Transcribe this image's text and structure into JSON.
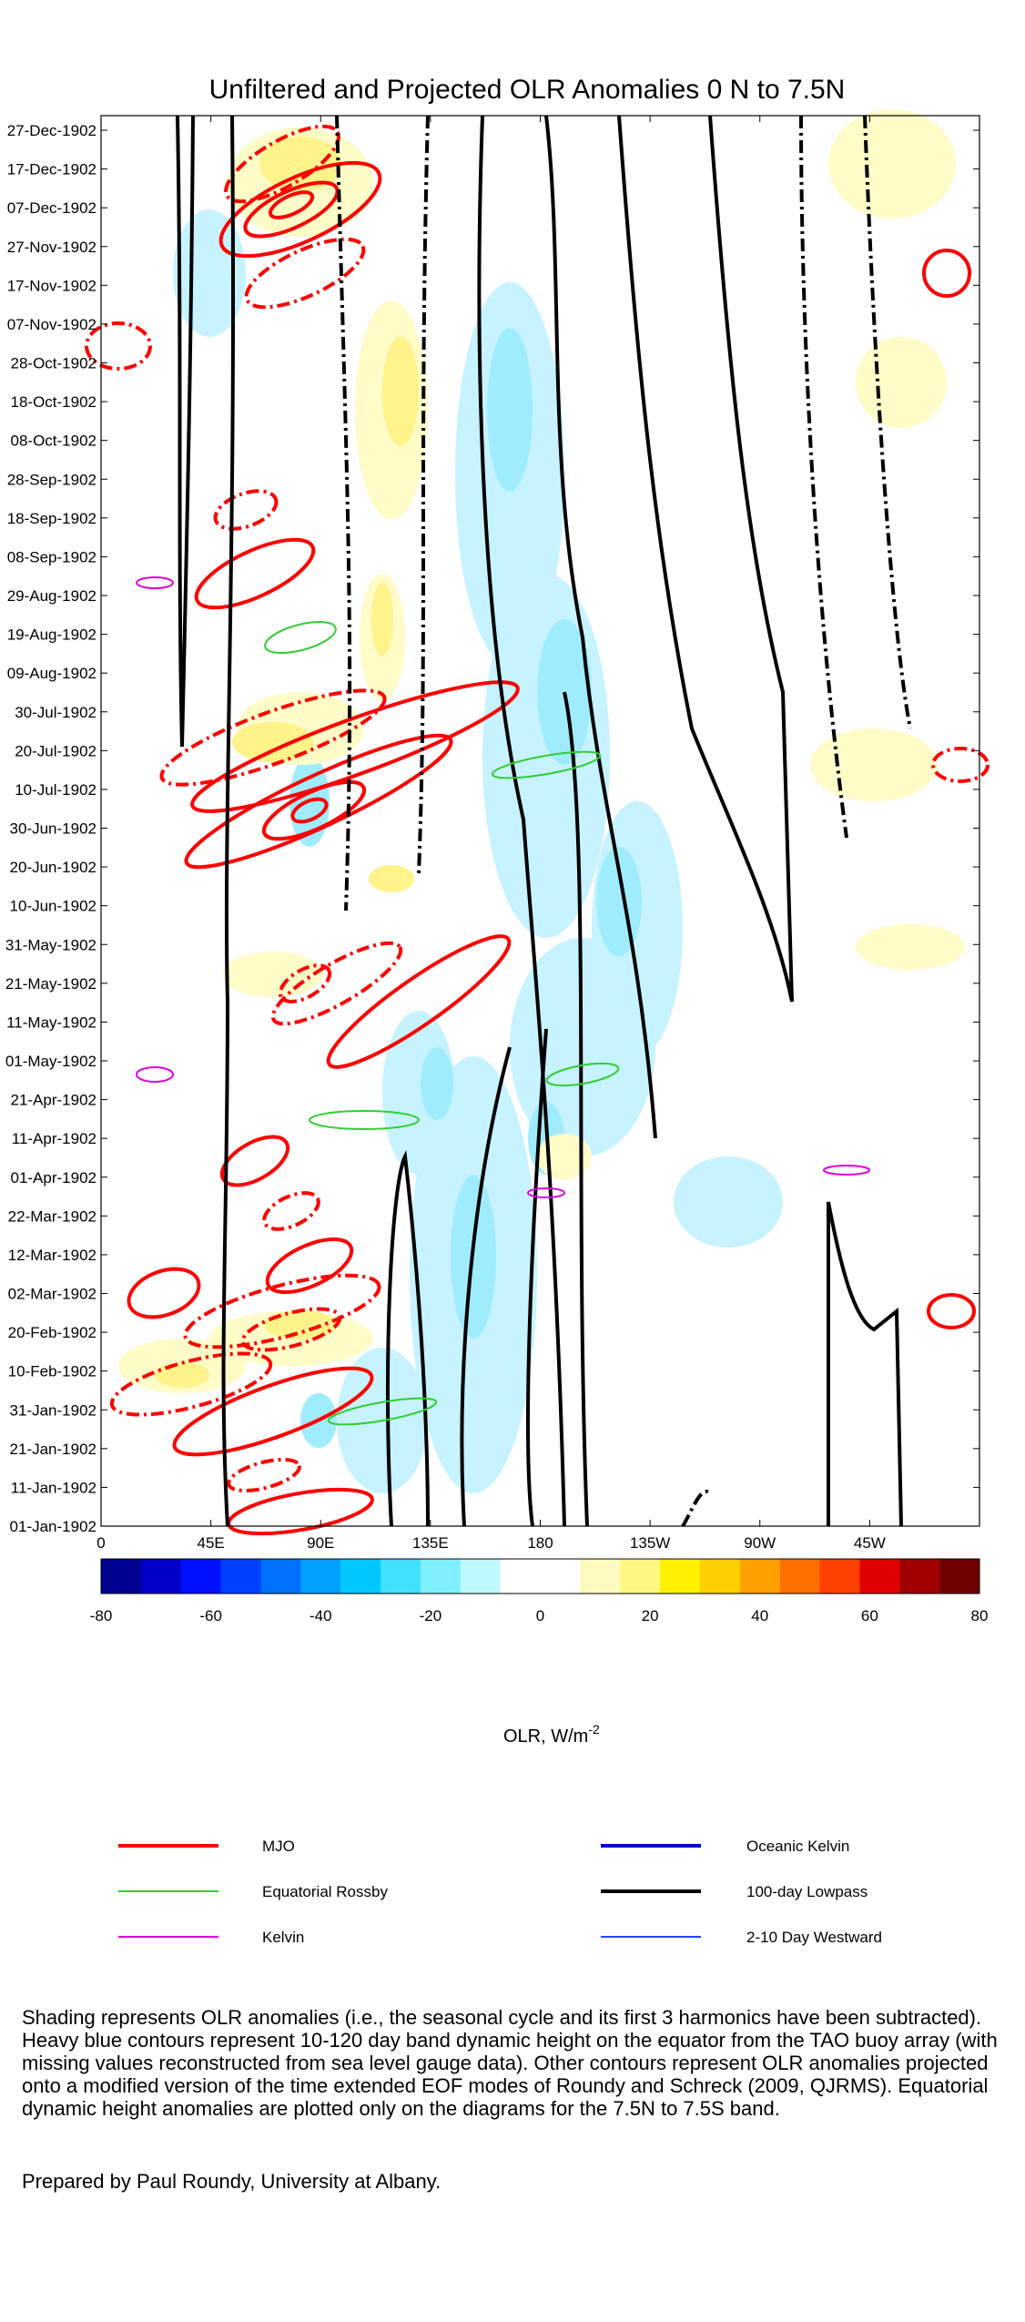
{
  "chart_data": {
    "type": "heatmap",
    "title": "Unfiltered and Projected OLR Anomalies  0 N to 7.5N",
    "y_ticks": [
      "27-Dec-1902",
      "17-Dec-1902",
      "07-Dec-1902",
      "27-Nov-1902",
      "17-Nov-1902",
      "07-Nov-1902",
      "28-Oct-1902",
      "18-Oct-1902",
      "08-Oct-1902",
      "28-Sep-1902",
      "18-Sep-1902",
      "08-Sep-1902",
      "29-Aug-1902",
      "19-Aug-1902",
      "09-Aug-1902",
      "30-Jul-1902",
      "20-Jul-1902",
      "10-Jul-1902",
      "30-Jun-1902",
      "20-Jun-1902",
      "10-Jun-1902",
      "31-May-1902",
      "21-May-1902",
      "11-May-1902",
      "01-May-1902",
      "21-Apr-1902",
      "11-Apr-1902",
      "01-Apr-1902",
      "22-Mar-1902",
      "12-Mar-1902",
      "02-Mar-1902",
      "20-Feb-1902",
      "10-Feb-1902",
      "31-Jan-1902",
      "21-Jan-1902",
      "11-Jan-1902",
      "01-Jan-1902"
    ],
    "x_ticks": [
      "0",
      "45E",
      "90E",
      "135E",
      "180",
      "135W",
      "90W",
      "45W"
    ],
    "colorbar": {
      "label": "OLR, W/m",
      "label_sup": "-2",
      "range": [
        -80,
        80
      ],
      "tick_labels": [
        "-80",
        "-60",
        "-40",
        "-20",
        "0",
        "20",
        "40",
        "60",
        "80"
      ],
      "colors": [
        "#00008f",
        "#0000c8",
        "#0010ff",
        "#0040ff",
        "#0070ff",
        "#00a0ff",
        "#00c8ff",
        "#40e0ff",
        "#80f0ff",
        "#c0f8ff",
        "#ffffff",
        "#ffffff",
        "#fffbc0",
        "#fff880",
        "#fff000",
        "#ffd000",
        "#ffa000",
        "#ff7000",
        "#ff4000",
        "#e00000",
        "#a00000",
        "#700000"
      ]
    },
    "heat_colors": {
      "cyan_light": "#c6f3ff",
      "cyan": "#a0ecff",
      "yellow_light": "#fffcc8",
      "yellow": "#fff38a"
    },
    "legend": [
      {
        "label": "MJO",
        "color": "#ff0000"
      },
      {
        "label": "Oceanic Kelvin",
        "color": "#0000cc"
      },
      {
        "label": "Equatorial Rossby",
        "color": "#33cc33"
      },
      {
        "label": "100-day Lowpass",
        "color": "#000000"
      },
      {
        "label": "Kelvin",
        "color": "#dd00dd"
      },
      {
        "label": "2-10 Day Westward",
        "color": "#2244ff"
      }
    ]
  },
  "caption": "Shading represents OLR anomalies (i.e., the seasonal cycle and its first 3 harmonics have been subtracted). Heavy blue contours represent 10-120 day band dynamic height on the equator from the TAO buoy array (with missing values reconstructed from sea level gauge data). Other contours represent OLR anomalies projected onto a modified version of the time extended EOF modes of Roundy and Schreck (2009, QJRMS). Equatorial dynamic height anomalies are plotted only on the diagrams for the 7.5N to 7.5S band.",
  "credit": "Prepared by Paul Roundy, University at Albany."
}
